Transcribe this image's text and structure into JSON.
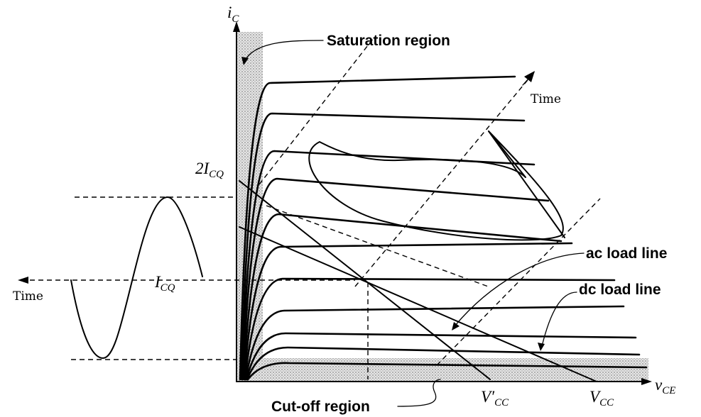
{
  "labels": {
    "y_axis": "i",
    "y_axis_sub": "C",
    "x_axis": "v",
    "x_axis_sub": "CE",
    "saturation": "Saturation region",
    "cutoff": "Cut-off region",
    "time_top": "Time",
    "time_left": "Time",
    "two_icq_prefix": "2I",
    "two_icq_sub": "CQ",
    "icq": "I",
    "icq_sub": "CQ",
    "ac_load": "ac load line",
    "dc_load": "dc load line",
    "vcc_prime": "V′",
    "vcc_prime_sub": "CC",
    "vcc": "V",
    "vcc_sub": "CC"
  },
  "colors": {
    "ink": "#000000",
    "shading": "#c8c8c8"
  }
}
